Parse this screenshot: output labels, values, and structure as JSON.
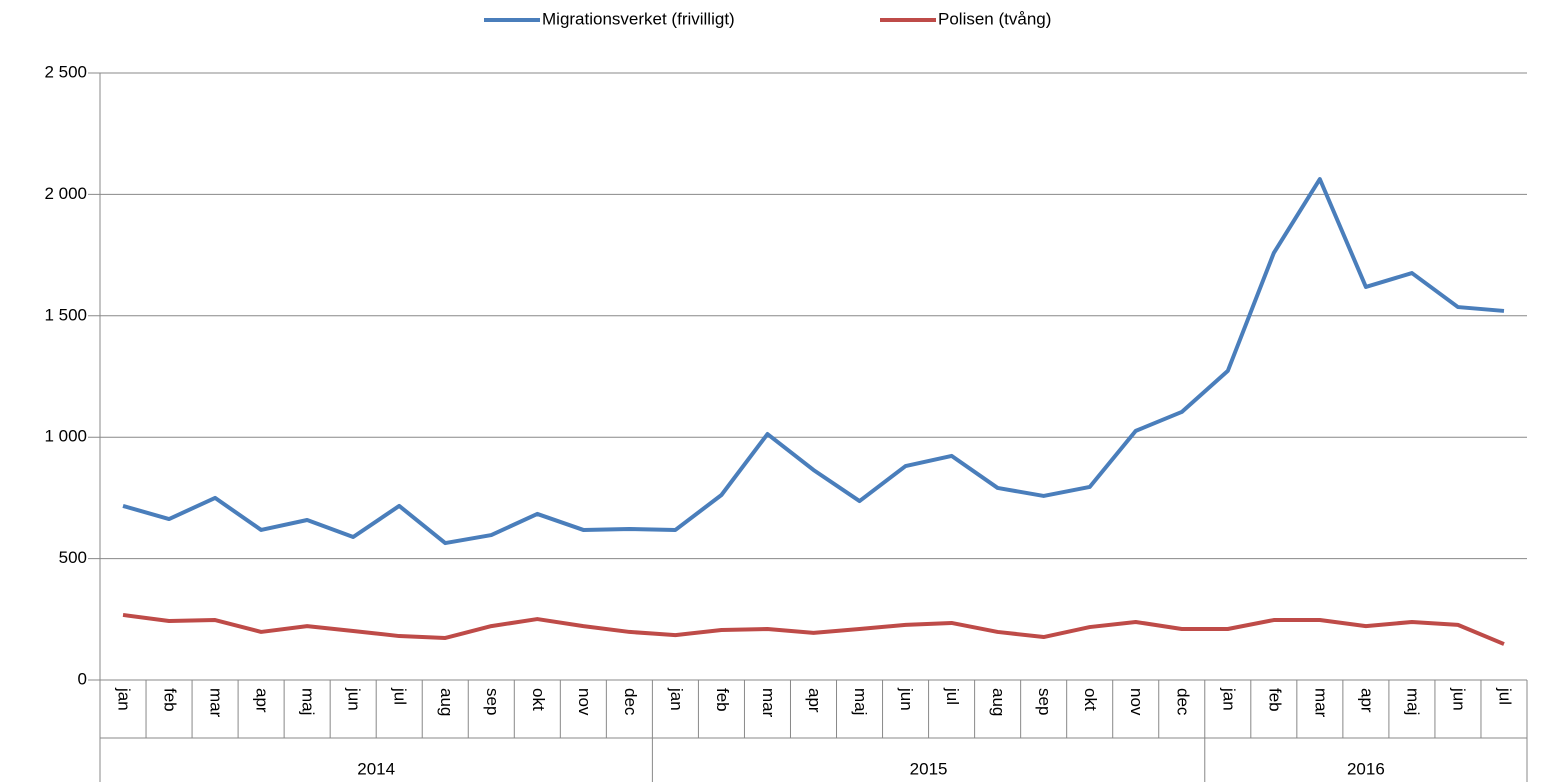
{
  "chart_data": {
    "type": "line",
    "category_groups": [
      {
        "name": "2014",
        "categories": [
          "jan",
          "feb",
          "mar",
          "apr",
          "maj",
          "jun",
          "jul",
          "aug",
          "sep",
          "okt",
          "nov",
          "dec"
        ]
      },
      {
        "name": "2015",
        "categories": [
          "jan",
          "feb",
          "mar",
          "apr",
          "maj",
          "jun",
          "jul",
          "aug",
          "sep",
          "okt",
          "nov",
          "dec"
        ]
      },
      {
        "name": "2016",
        "categories": [
          "jan",
          "feb",
          "mar",
          "apr",
          "maj",
          "jun",
          "jul"
        ]
      }
    ],
    "series": [
      {
        "name": "Migrationsverket (frivilligt)",
        "color": "#4a7ebb",
        "values": [
          717,
          663,
          750,
          618,
          659,
          589,
          717,
          564,
          597,
          684,
          618,
          622,
          618,
          762,
          1013,
          865,
          737,
          881,
          923,
          791,
          758,
          795,
          1026,
          1104,
          1273,
          1759,
          2063,
          1619,
          1676,
          1536,
          1520
        ]
      },
      {
        "name": "Polisen (tvång)",
        "color": "#be4b48",
        "values": [
          268,
          243,
          247,
          198,
          222,
          202,
          181,
          173,
          222,
          251,
          222,
          198,
          185,
          206,
          210,
          194,
          210,
          227,
          235,
          198,
          177,
          218,
          239,
          210,
          210,
          247,
          247,
          222,
          239,
          227,
          148
        ]
      }
    ],
    "ylim": [
      0,
      2500
    ],
    "yticks": [
      0,
      500,
      {
        "value": 1000,
        "label": "1 000"
      },
      {
        "value": 1500,
        "label": "1 500"
      },
      {
        "value": 2000,
        "label": "2 000"
      },
      {
        "value": 2500,
        "label": "2 500"
      }
    ],
    "grid": true,
    "legend": "top"
  }
}
